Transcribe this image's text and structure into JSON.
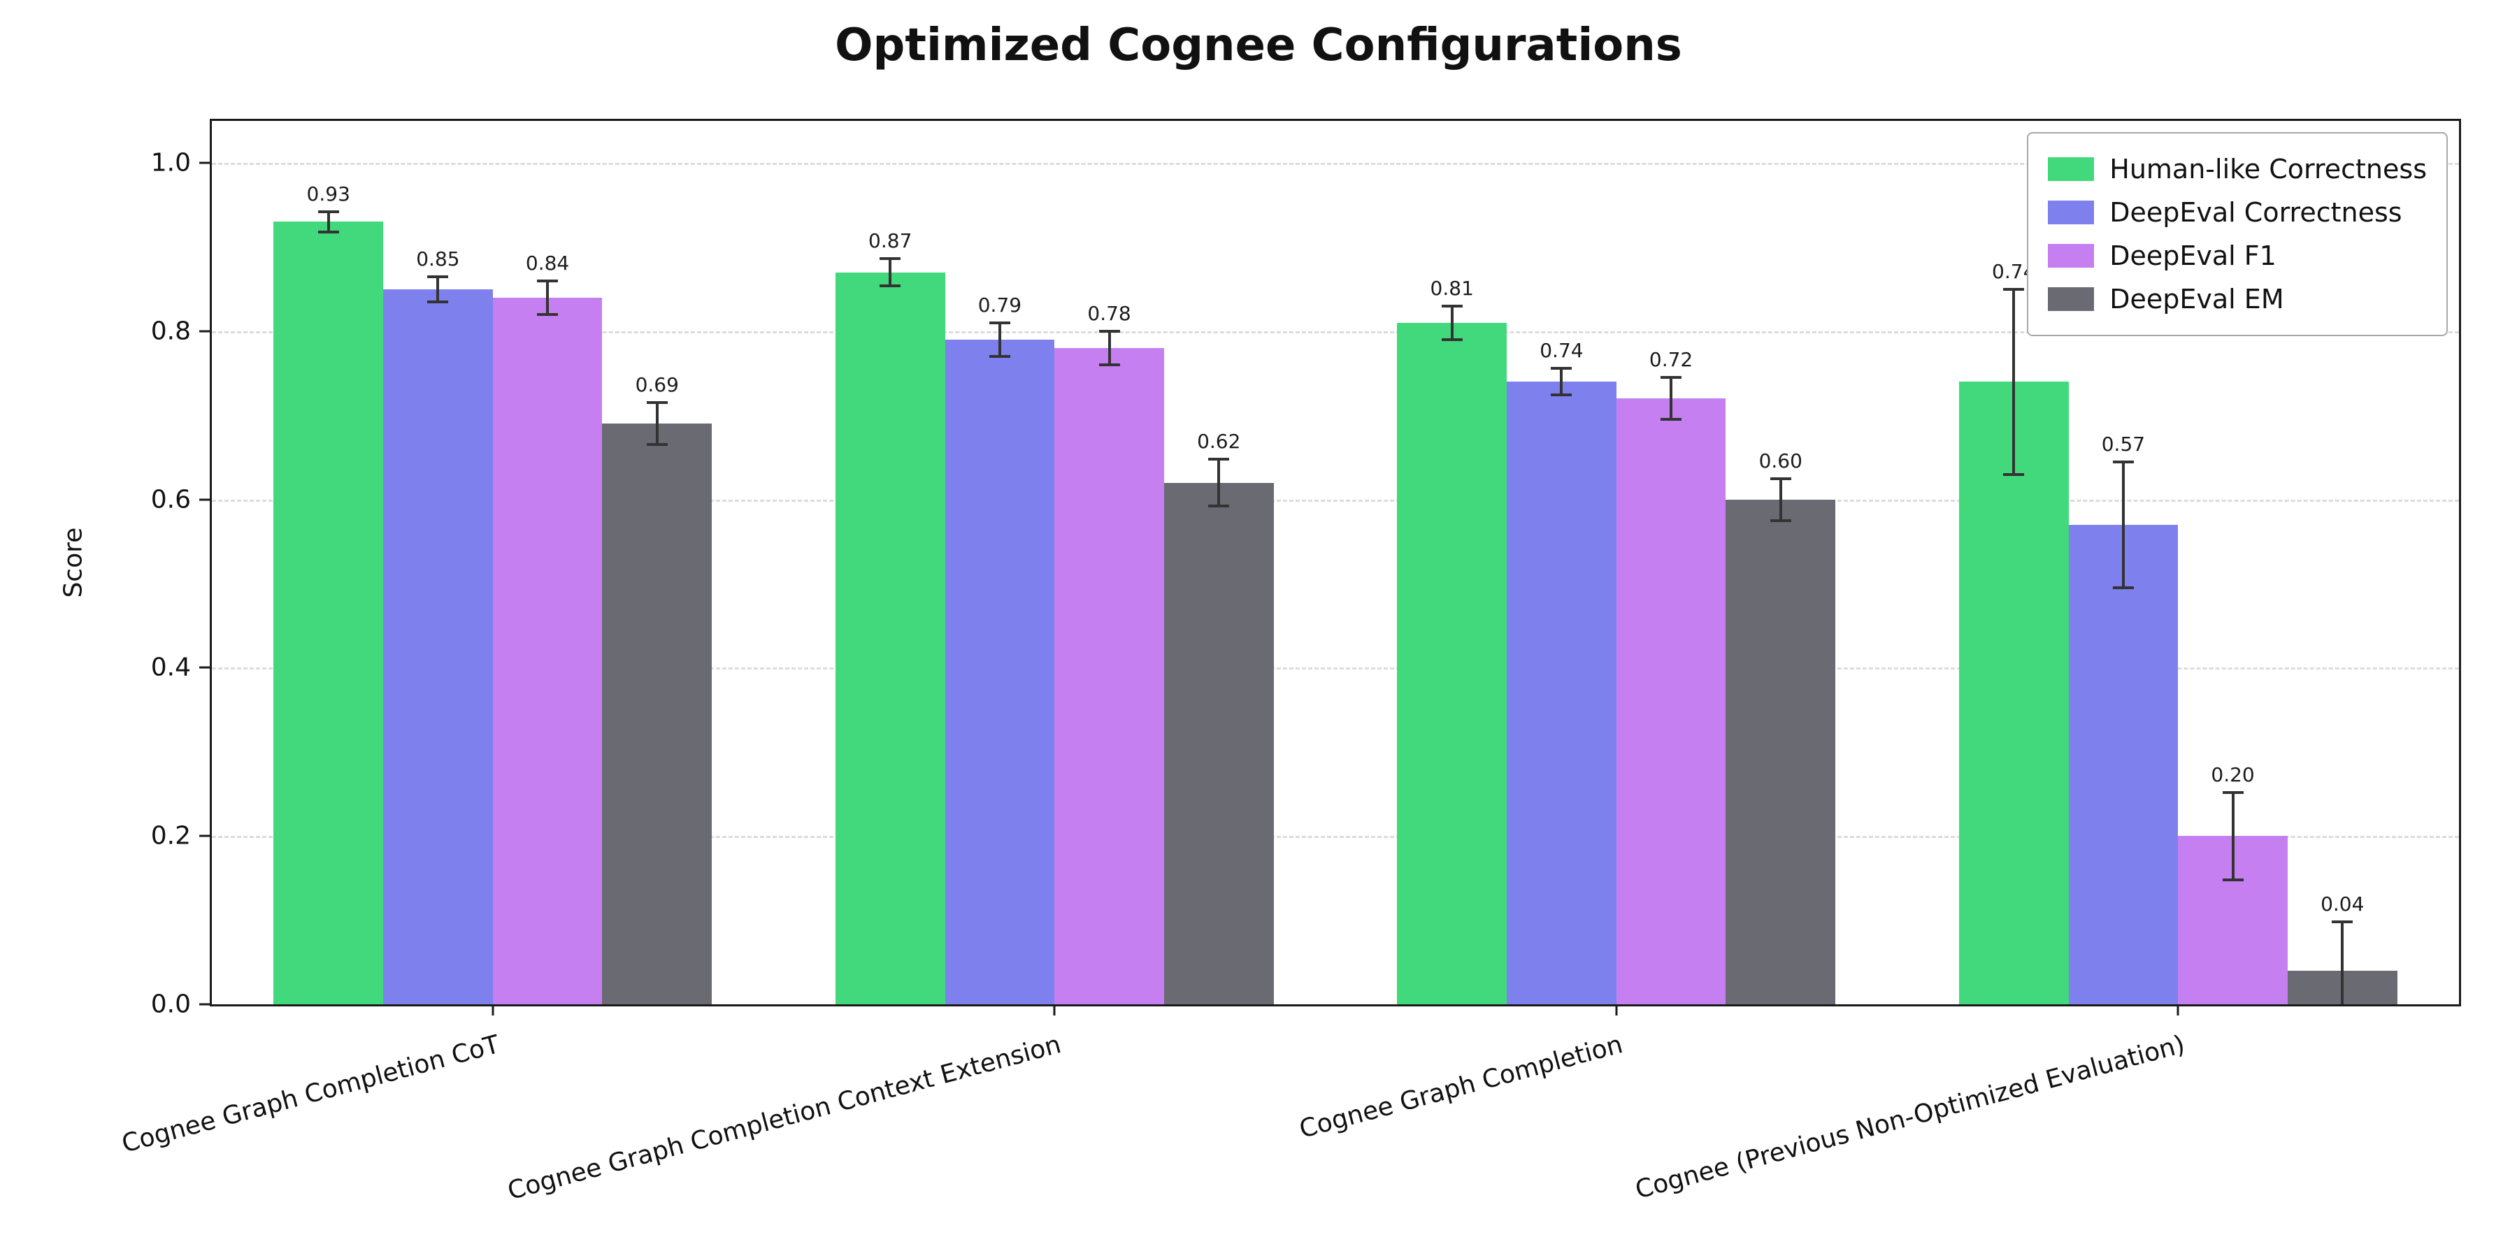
{
  "title": "Optimized Cognee Configurations",
  "chart_data": {
    "type": "bar",
    "title": "Optimized Cognee Configurations",
    "xlabel": "",
    "ylabel": "Score",
    "ylim": [
      0,
      1.05
    ],
    "yticks": [
      0.0,
      0.2,
      0.4,
      0.6,
      0.8,
      1.0
    ],
    "grid": "horizontal-dashed",
    "legend_position": "upper-right",
    "value_labels": true,
    "error_bars": true,
    "categories": [
      "Cognee Graph Completion CoT",
      "Cognee Graph Completion Context Extension",
      "Cognee Graph Completion",
      "Cognee (Previous Non-Optimized Evaluation)"
    ],
    "series": [
      {
        "name": "Human-like Correctness",
        "color": "#42d97d",
        "values": [
          0.93,
          0.87,
          0.81,
          0.74
        ],
        "errors": [
          0.012,
          0.016,
          0.02,
          0.11
        ]
      },
      {
        "name": "DeepEval Correctness",
        "color": "#7e80ed",
        "values": [
          0.85,
          0.79,
          0.74,
          0.57
        ],
        "errors": [
          0.015,
          0.02,
          0.016,
          0.075
        ]
      },
      {
        "name": "DeepEval F1",
        "color": "#c57ff0",
        "values": [
          0.84,
          0.78,
          0.72,
          0.2
        ],
        "errors": [
          0.02,
          0.02,
          0.025,
          0.052
        ]
      },
      {
        "name": "DeepEval EM",
        "color": "#6a6a72",
        "values": [
          0.69,
          0.62,
          0.6,
          0.04
        ],
        "errors": [
          0.025,
          0.028,
          0.025,
          0.058
        ]
      }
    ]
  }
}
